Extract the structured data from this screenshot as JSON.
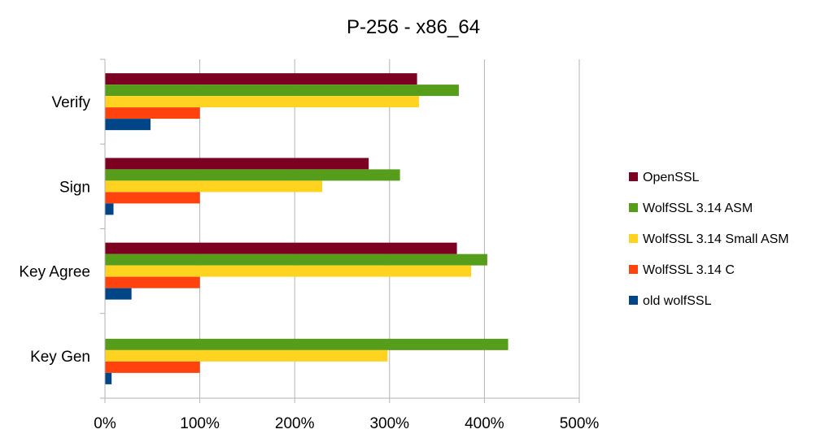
{
  "chart_data": {
    "type": "bar",
    "orientation": "horizontal",
    "title": "P-256 - x86_64",
    "xlabel": "",
    "ylabel": "",
    "categories": [
      "Verify",
      "Sign",
      "Key Agree",
      "Key Gen"
    ],
    "xlim": [
      0,
      500
    ],
    "x_ticks": [
      "0%",
      "100%",
      "200%",
      "300%",
      "400%",
      "500%"
    ],
    "grid": "vertical",
    "legend_position": "right",
    "series": [
      {
        "name": "OpenSSL",
        "color": "#7b0021",
        "values": [
          329,
          278,
          371,
          null
        ]
      },
      {
        "name": "WolfSSL 3.14 ASM",
        "color": "#579d1c",
        "values": [
          373,
          311,
          403,
          425
        ]
      },
      {
        "name": "WolfSSL 3.14 Small ASM",
        "color": "#ffd320",
        "values": [
          331,
          229,
          386,
          298
        ]
      },
      {
        "name": "WolfSSL 3.14 C",
        "color": "#ff420e",
        "values": [
          100,
          100,
          100,
          100
        ]
      },
      {
        "name": "old wolfSSL",
        "color": "#004586",
        "values": [
          48,
          9,
          28,
          7
        ]
      }
    ]
  }
}
